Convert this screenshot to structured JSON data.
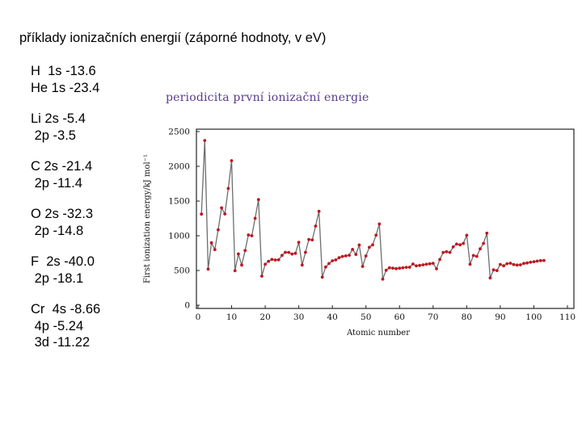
{
  "slide": {
    "title": "příklady ionizačních energií (záporné hodnoty, v eV)",
    "energies": [
      [
        "H  1s -13.6",
        "He 1s -23.4"
      ],
      [
        "Li 2s -5.4",
        " 2p -3.5"
      ],
      [
        "C 2s -21.4",
        " 2p -11.4"
      ],
      [
        "O 2s -32.3",
        " 2p -14.8"
      ],
      [
        "F  2s -40.0",
        " 2p -18.1"
      ],
      [
        "Cr  4s -8.66",
        " 4p -5.24",
        " 3d -11.22"
      ]
    ]
  },
  "chart_data": {
    "type": "line",
    "title": "periodicita první ionizační energie",
    "xlabel": "Atomic number",
    "ylabel": "First ionization energy/kJ mol⁻¹",
    "xlim": [
      0,
      110
    ],
    "ylim": [
      0,
      2500
    ],
    "xticks": [
      0,
      10,
      20,
      30,
      40,
      50,
      60,
      70,
      80,
      90,
      100,
      110
    ],
    "yticks": [
      0,
      500,
      1000,
      1500,
      2000,
      2500
    ],
    "grid": false,
    "line_color": "#6e6e6e",
    "marker_color": "#c0141e",
    "series": [
      {
        "x": [
          1,
          2,
          3,
          4,
          5,
          6,
          7,
          8,
          9,
          10,
          11,
          12,
          13,
          14,
          15,
          16,
          17,
          18,
          19,
          20,
          21,
          22,
          23,
          24,
          25,
          26,
          27,
          28,
          29,
          30,
          31,
          32,
          33,
          34,
          35,
          36,
          37,
          38,
          39,
          40,
          41,
          42,
          43,
          44,
          45,
          46,
          47,
          48,
          49,
          50,
          51,
          52,
          53,
          54,
          55,
          56,
          57,
          58,
          59,
          60,
          61,
          62,
          63,
          64,
          65,
          66,
          67,
          68,
          69,
          70,
          71,
          72,
          73,
          74,
          75,
          76,
          77,
          78,
          79,
          80,
          81,
          82,
          83,
          84,
          85,
          86,
          87,
          88,
          89,
          90,
          91,
          92,
          93,
          94,
          95,
          96,
          97,
          98,
          99,
          100,
          101,
          102,
          103
        ],
        "values": [
          1312,
          2372,
          520,
          899,
          801,
          1086,
          1402,
          1314,
          1681,
          2081,
          496,
          738,
          578,
          787,
          1012,
          1000,
          1251,
          1521,
          419,
          590,
          633,
          659,
          651,
          653,
          717,
          762,
          760,
          737,
          746,
          906,
          579,
          762,
          947,
          941,
          1140,
          1351,
          403,
          550,
          600,
          640,
          652,
          684,
          702,
          710,
          720,
          804,
          731,
          868,
          558,
          709,
          834,
          869,
          1008,
          1170,
          376,
          503,
          538,
          534,
          527,
          533,
          540,
          545,
          547,
          593,
          566,
          573,
          581,
          589,
          597,
          603,
          524,
          659,
          761,
          770,
          760,
          840,
          880,
          870,
          890,
          1007,
          589,
          716,
          703,
          812,
          890,
          1037,
          393,
          509,
          499,
          587,
          568,
          598,
          605,
          585,
          578,
          581,
          601,
          608,
          619,
          627,
          635,
          642,
          644
        ]
      }
    ]
  }
}
